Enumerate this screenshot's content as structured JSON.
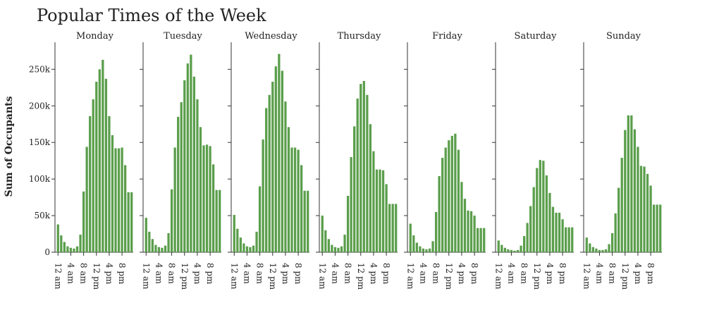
{
  "chart_data": {
    "type": "bar",
    "title": "Popular Times of the Week",
    "ylabel": "Sum of Occupants",
    "xlabel": "",
    "ylim": [
      0,
      285000
    ],
    "yticks": [
      0,
      50000,
      100000,
      150000,
      200000,
      250000
    ],
    "ytick_labels": [
      "0",
      "50k",
      "100k",
      "150k",
      "200k",
      "250k"
    ],
    "hours": [
      0,
      1,
      2,
      3,
      4,
      5,
      6,
      7,
      8,
      9,
      10,
      11,
      12,
      13,
      14,
      15,
      16,
      17,
      18,
      19,
      20,
      21,
      22,
      23
    ],
    "xtick_hours": [
      0,
      4,
      8,
      12,
      16,
      20
    ],
    "xtick_labels": [
      "12 am",
      "4 am",
      "8 am",
      "12 pm",
      "4 pm",
      "8 pm"
    ],
    "bar_color": "#5a9e4b",
    "series": [
      {
        "name": "Monday",
        "values": [
          38000,
          23000,
          14000,
          8000,
          6000,
          5000,
          8000,
          24000,
          83000,
          144000,
          186000,
          209000,
          233000,
          250000,
          263000,
          237000,
          186000,
          160000,
          142000,
          142000,
          143000,
          119000,
          82000,
          82000
        ]
      },
      {
        "name": "Tuesday",
        "values": [
          47000,
          28000,
          18000,
          10000,
          7000,
          6000,
          9000,
          26000,
          86000,
          143000,
          185000,
          205000,
          235000,
          258000,
          270000,
          240000,
          209000,
          171000,
          146000,
          147000,
          145000,
          120000,
          85000,
          85000
        ]
      },
      {
        "name": "Wednesday",
        "values": [
          51000,
          32000,
          20000,
          12000,
          8000,
          7000,
          9000,
          28000,
          90000,
          154000,
          197000,
          215000,
          233000,
          254000,
          271000,
          248000,
          206000,
          171000,
          143000,
          143000,
          140000,
          119000,
          84000,
          84000
        ]
      },
      {
        "name": "Thursday",
        "values": [
          50000,
          30000,
          18000,
          10000,
          7000,
          6000,
          8000,
          24000,
          77000,
          130000,
          172000,
          210000,
          230000,
          234000,
          215000,
          175000,
          138000,
          113000,
          113000,
          112000,
          93000,
          66000,
          66000,
          66000
        ]
      },
      {
        "name": "Friday",
        "values": [
          39000,
          23000,
          13000,
          8000,
          5000,
          4000,
          5000,
          15000,
          55000,
          104000,
          129000,
          143000,
          153000,
          159000,
          162000,
          140000,
          96000,
          73000,
          57000,
          56000,
          50000,
          33000,
          33000,
          33000
        ]
      },
      {
        "name": "Saturday",
        "values": [
          16000,
          10000,
          6000,
          4000,
          3000,
          2000,
          3000,
          9000,
          22000,
          40000,
          63000,
          89000,
          115000,
          126000,
          125000,
          105000,
          81000,
          62000,
          54000,
          54000,
          45000,
          34000,
          34000,
          34000
        ]
      },
      {
        "name": "Sunday",
        "values": [
          20000,
          12000,
          7000,
          5000,
          3000,
          3000,
          4000,
          11000,
          26000,
          53000,
          88000,
          129000,
          167000,
          187000,
          187000,
          168000,
          144000,
          118000,
          117000,
          107000,
          91000,
          65000,
          65000,
          65000
        ]
      }
    ]
  }
}
